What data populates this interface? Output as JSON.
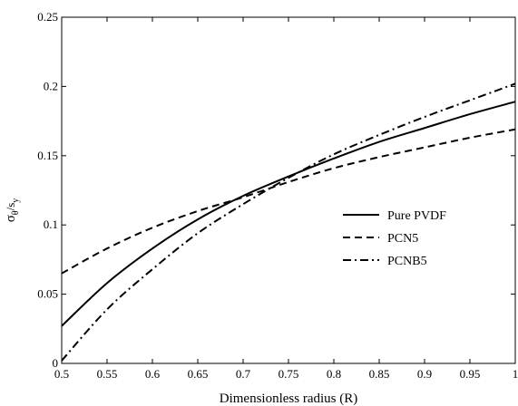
{
  "chart_data": {
    "type": "line",
    "title": "",
    "xlabel": "Dimensionless radius (R)",
    "ylabel": {
      "main": "σ",
      "sub1": "θ",
      "slash": "/s",
      "sub2": "y"
    },
    "xlim": [
      0.5,
      1.0
    ],
    "ylim": [
      0,
      0.25
    ],
    "xticks": [
      "0.5",
      "0.55",
      "0.6",
      "0.65",
      "0.7",
      "0.75",
      "0.8",
      "0.85",
      "0.9",
      "0.95",
      "1"
    ],
    "yticks": [
      "0",
      "0.05",
      "0.1",
      "0.15",
      "0.2",
      "0.25"
    ],
    "grid": false,
    "legend_position": "center-right",
    "x": [
      0.5,
      0.55,
      0.6,
      0.65,
      0.7,
      0.75,
      0.8,
      0.85,
      0.9,
      0.95,
      1.0
    ],
    "series": [
      {
        "name": "Pure PVDF",
        "style": "solid",
        "values": [
          0.027,
          0.058,
          0.083,
          0.104,
          0.121,
          0.135,
          0.148,
          0.16,
          0.17,
          0.18,
          0.189
        ]
      },
      {
        "name": "PCN5",
        "style": "dashed",
        "values": [
          0.065,
          0.083,
          0.098,
          0.11,
          0.12,
          0.131,
          0.141,
          0.149,
          0.156,
          0.163,
          0.169
        ]
      },
      {
        "name": "PCNB5",
        "style": "dashdot",
        "values": [
          0.002,
          0.039,
          0.068,
          0.094,
          0.115,
          0.134,
          0.151,
          0.165,
          0.178,
          0.19,
          0.202
        ]
      }
    ]
  }
}
